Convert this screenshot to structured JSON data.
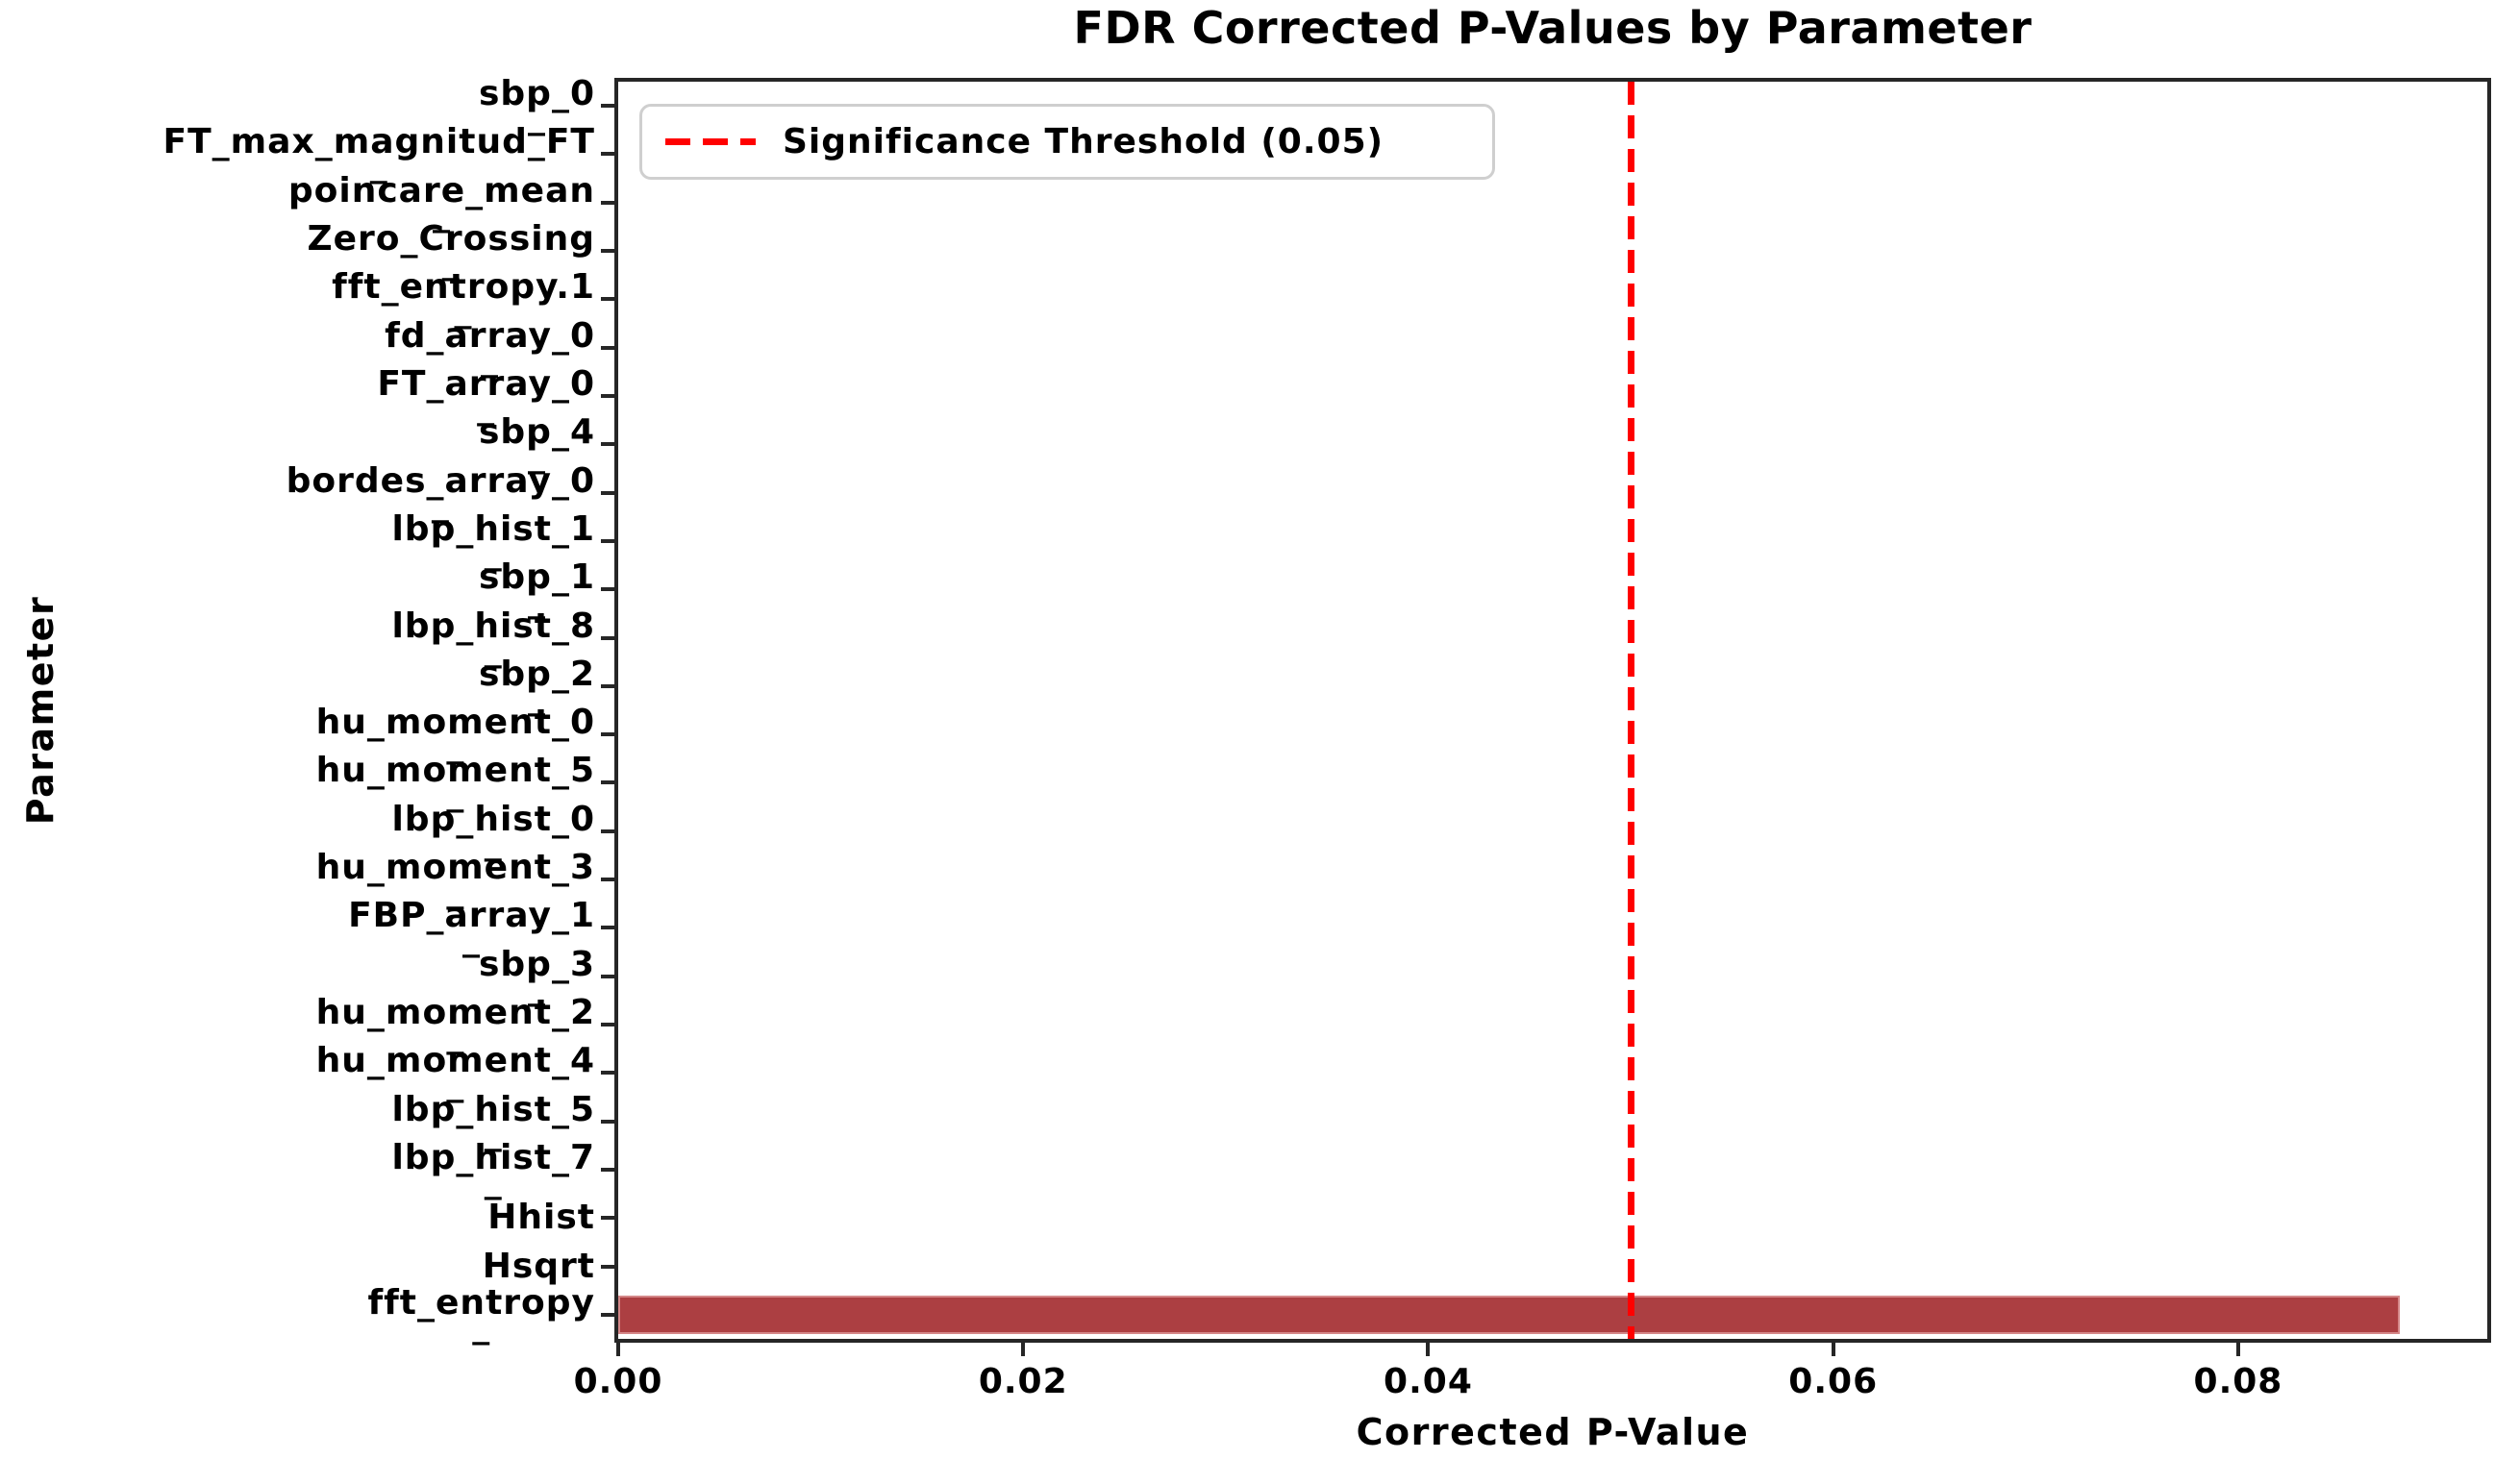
{
  "title": "FDR Corrected P-Values by Parameter",
  "chart_data": {
    "type": "bar",
    "orientation": "horizontal",
    "title": "FDR Corrected P-Values by Parameter",
    "xlabel": "Corrected P-Value",
    "ylabel": "Parameter",
    "xlim": [
      0,
      0.0923
    ],
    "x_ticks": [
      {
        "value": 0.0,
        "label": "0.00"
      },
      {
        "value": 0.02,
        "label": "0.02"
      },
      {
        "value": 0.04,
        "label": "0.04"
      },
      {
        "value": 0.06,
        "label": "0.06"
      },
      {
        "value": 0.08,
        "label": "0.08"
      }
    ],
    "grid": false,
    "bar_color": "#AC3F42",
    "bar_edge_color": "rgba(219,148,148,0.85)",
    "threshold_line": {
      "value": 0.05,
      "color": "#FF0000",
      "style": "dashed",
      "label": "Significance Threshold (0.05)"
    },
    "legend_position": "upper left",
    "categories": [
      {
        "label": "sbp_0",
        "wrap": "_",
        "value": 0
      },
      {
        "label": "FT_max_magnitud_FT",
        "wrap": "_",
        "value": 0
      },
      {
        "label": "poincare_mean",
        "wrap": "_",
        "value": 0
      },
      {
        "label": "Zero_Crossing",
        "wrap": "_",
        "value": 0
      },
      {
        "label": "fft_entropy.1",
        "wrap": "_",
        "value": 0
      },
      {
        "label": "fd_array_0",
        "wrap": "_",
        "value": 0
      },
      {
        "label": "FT_array_0",
        "wrap": "_",
        "value": 0
      },
      {
        "label": "sbp_4",
        "wrap": "_",
        "value": 0
      },
      {
        "label": "bordes_array_0",
        "wrap": "_",
        "value": 0
      },
      {
        "label": "lbp_hist_1",
        "wrap": "_",
        "value": 0
      },
      {
        "label": "sbp_1",
        "wrap": "_",
        "value": 0
      },
      {
        "label": "lbp_hist_8",
        "wrap": "_",
        "value": 0
      },
      {
        "label": "sbp_2",
        "wrap": "_",
        "value": 0
      },
      {
        "label": "hu_moment_0",
        "wrap": "_",
        "value": 0
      },
      {
        "label": "hu_moment_5",
        "wrap": "_",
        "value": 0
      },
      {
        "label": "lbp_hist_0",
        "wrap": "_",
        "value": 0
      },
      {
        "label": "hu_moment_3",
        "wrap": "_",
        "value": 0
      },
      {
        "label": "FBP_array_1",
        "wrap": "_",
        "value": 0
      },
      {
        "label": "sbp_3",
        "wrap": "_",
        "value": 0
      },
      {
        "label": "hu_moment_2",
        "wrap": "_",
        "value": 0
      },
      {
        "label": "hu_moment_4",
        "wrap": "_",
        "value": 0
      },
      {
        "label": "lbp_hist_5",
        "wrap": "_",
        "value": 0
      },
      {
        "label": "lbp_hist_7",
        "wrap": "_",
        "value": 0
      },
      {
        "label": "Hhist",
        "wrap": "",
        "value": 0
      },
      {
        "label": "Hsqrt",
        "wrap": "",
        "value": 0
      },
      {
        "label": "fft_entropy",
        "wrap": "_",
        "value": 0.088
      }
    ]
  }
}
